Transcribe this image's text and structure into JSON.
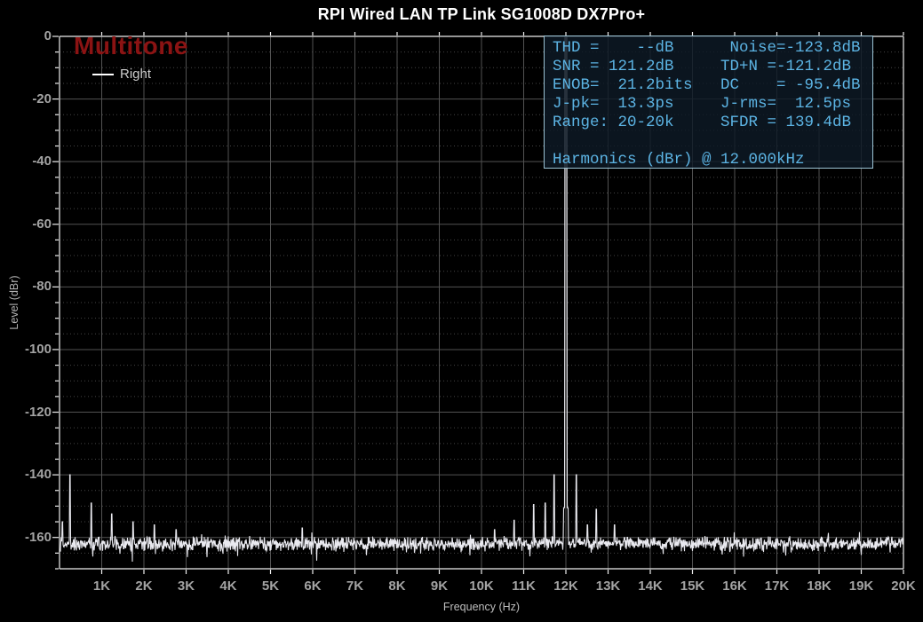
{
  "header": {
    "title": "RPI Wired LAN TP Link SG1008D DX7Pro+"
  },
  "watermark": {
    "label": "Multitone",
    "color": "#8b1313"
  },
  "legend": {
    "items": [
      {
        "label": "Right",
        "line_color": "#ffffff"
      }
    ]
  },
  "stats_box": {
    "border_color": "#9cc3d4",
    "text_color": "#5cb4e4",
    "lines": [
      "THD =    --dB      Noise=-123.8dB",
      "SNR = 121.2dB     TD+N =-121.2dB",
      "ENOB=  21.2bits   DC    = -95.4dB",
      "J-pk=  13.3ps     J-rms=  12.5ps",
      "Range: 20-20k     SFDR = 139.4dB",
      "",
      "Harmonics (dBr) @ 12.000kHz"
    ]
  },
  "colors": {
    "background": "#000000",
    "trace": "#e9e9ef",
    "grid_major": "#525252",
    "grid_minor": "#454545",
    "frame": "#eeeeee",
    "watermark_red": "#8b1313",
    "stats_blue": "#5cb4e4"
  },
  "chart_data": {
    "type": "line",
    "subtype": "audio-spectrum-fft",
    "title": "RPI Wired LAN TP Link SG1008D DX7Pro+",
    "xlabel": "Frequency (Hz)",
    "ylabel": "Level (dBr)",
    "xlim_hz": [
      0,
      20000
    ],
    "ylim_dbr": [
      -170,
      0
    ],
    "grid": {
      "major_db_step": 20,
      "minor_db_step": 5,
      "x_step_hz": 1000
    },
    "x_ticks": {
      "labels": [
        "1K",
        "2K",
        "3K",
        "4K",
        "5K",
        "6K",
        "7K",
        "8K",
        "9K",
        "10K",
        "11K",
        "12K",
        "13K",
        "14K",
        "15K",
        "16K",
        "17K",
        "18K",
        "19K",
        "20K"
      ],
      "values_hz": [
        1000,
        2000,
        3000,
        4000,
        5000,
        6000,
        7000,
        8000,
        9000,
        10000,
        11000,
        12000,
        13000,
        14000,
        15000,
        16000,
        17000,
        18000,
        19000,
        20000
      ]
    },
    "y_ticks": {
      "labels": [
        "0",
        "-20",
        "-40",
        "-60",
        "-80",
        "-100",
        "-120",
        "-140",
        "-160"
      ],
      "values_dbr": [
        0,
        -20,
        -40,
        -60,
        -80,
        -100,
        -120,
        -140,
        -160
      ]
    },
    "series": [
      {
        "name": "Right",
        "color": "#e9e9ef",
        "noise_floor": {
          "mean_dbr": -162,
          "jitter_db": 2.6,
          "seed": 12
        },
        "main_tone": {
          "freq_hz": 12000,
          "level_dbr": 0,
          "skirt_half_width_hz": 55,
          "skirt_level_dbr": -150.5
        },
        "spurs": [
          {
            "freq_hz": 60,
            "level_dbr": -155
          },
          {
            "freq_hz": 240,
            "level_dbr": -140
          },
          {
            "freq_hz": 750,
            "level_dbr": -149
          },
          {
            "freq_hz": 1230,
            "level_dbr": -152.5
          },
          {
            "freq_hz": 1740,
            "level_dbr": -155
          },
          {
            "freq_hz": 2240,
            "level_dbr": -156
          },
          {
            "freq_hz": 2760,
            "level_dbr": -157.5
          },
          {
            "freq_hz": 5750,
            "level_dbr": -157
          },
          {
            "freq_hz": 10300,
            "level_dbr": -157.5
          },
          {
            "freq_hz": 10770,
            "level_dbr": -154.5
          },
          {
            "freq_hz": 11230,
            "level_dbr": -149.5
          },
          {
            "freq_hz": 11500,
            "level_dbr": -149
          },
          {
            "freq_hz": 11720,
            "level_dbr": -140
          },
          {
            "freq_hz": 12240,
            "level_dbr": -140
          },
          {
            "freq_hz": 12500,
            "level_dbr": -156
          },
          {
            "freq_hz": 12720,
            "level_dbr": -151
          },
          {
            "freq_hz": 13150,
            "level_dbr": -156
          }
        ]
      }
    ],
    "measurements": {
      "THD": "--dB",
      "SNR": "121.2dB",
      "ENOB": "21.2bits",
      "J-pk": "13.3ps",
      "Range": "20-20k",
      "Noise": "-123.8dB",
      "TD+N": "-121.2dB",
      "DC": "-95.4dB",
      "J-rms": "12.5ps",
      "SFDR": "139.4dB",
      "harmonics_header": "Harmonics (dBr) @ 12.000kHz"
    }
  }
}
